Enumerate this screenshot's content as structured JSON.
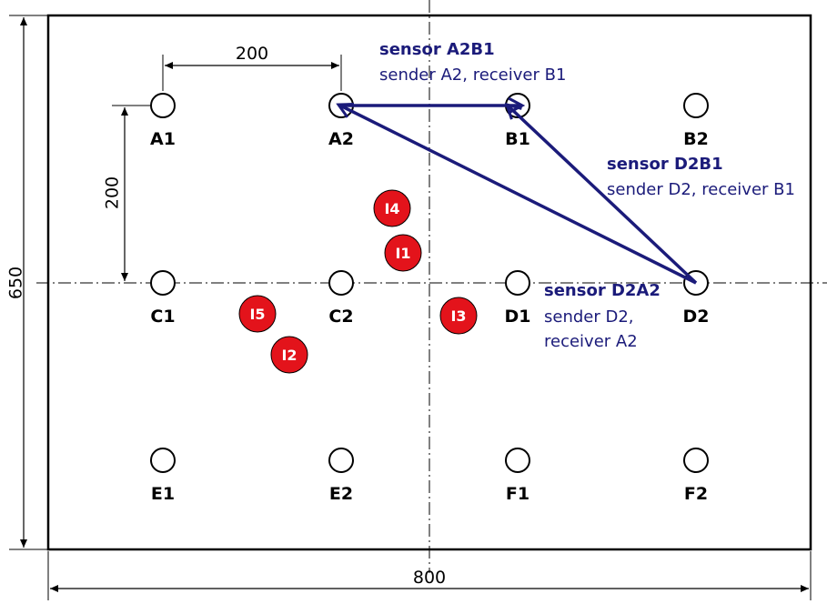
{
  "dimensions": {
    "width": "800",
    "height": "650",
    "spacing_horizontal": "200",
    "spacing_vertical": "200"
  },
  "holes": [
    {
      "id": "A1"
    },
    {
      "id": "A2"
    },
    {
      "id": "B1"
    },
    {
      "id": "B2"
    },
    {
      "id": "C1"
    },
    {
      "id": "C2"
    },
    {
      "id": "D1"
    },
    {
      "id": "D2"
    },
    {
      "id": "E1"
    },
    {
      "id": "E2"
    },
    {
      "id": "F1"
    },
    {
      "id": "F2"
    }
  ],
  "impacts": [
    {
      "id": "I1"
    },
    {
      "id": "I2"
    },
    {
      "id": "I3"
    },
    {
      "id": "I4"
    },
    {
      "id": "I5"
    }
  ],
  "sensors": [
    {
      "title": "sensor A2B1",
      "desc": [
        "sender A2, receiver B1"
      ]
    },
    {
      "title": "sensor D2B1",
      "desc": [
        "sender D2, receiver B1"
      ]
    },
    {
      "title": "sensor D2A2",
      "desc": [
        "sender D2,",
        "receiver A2"
      ]
    }
  ],
  "colors": {
    "sensor_path": "#1b1b7a",
    "impact_fill": "#e3131b",
    "outline": "#000000"
  }
}
